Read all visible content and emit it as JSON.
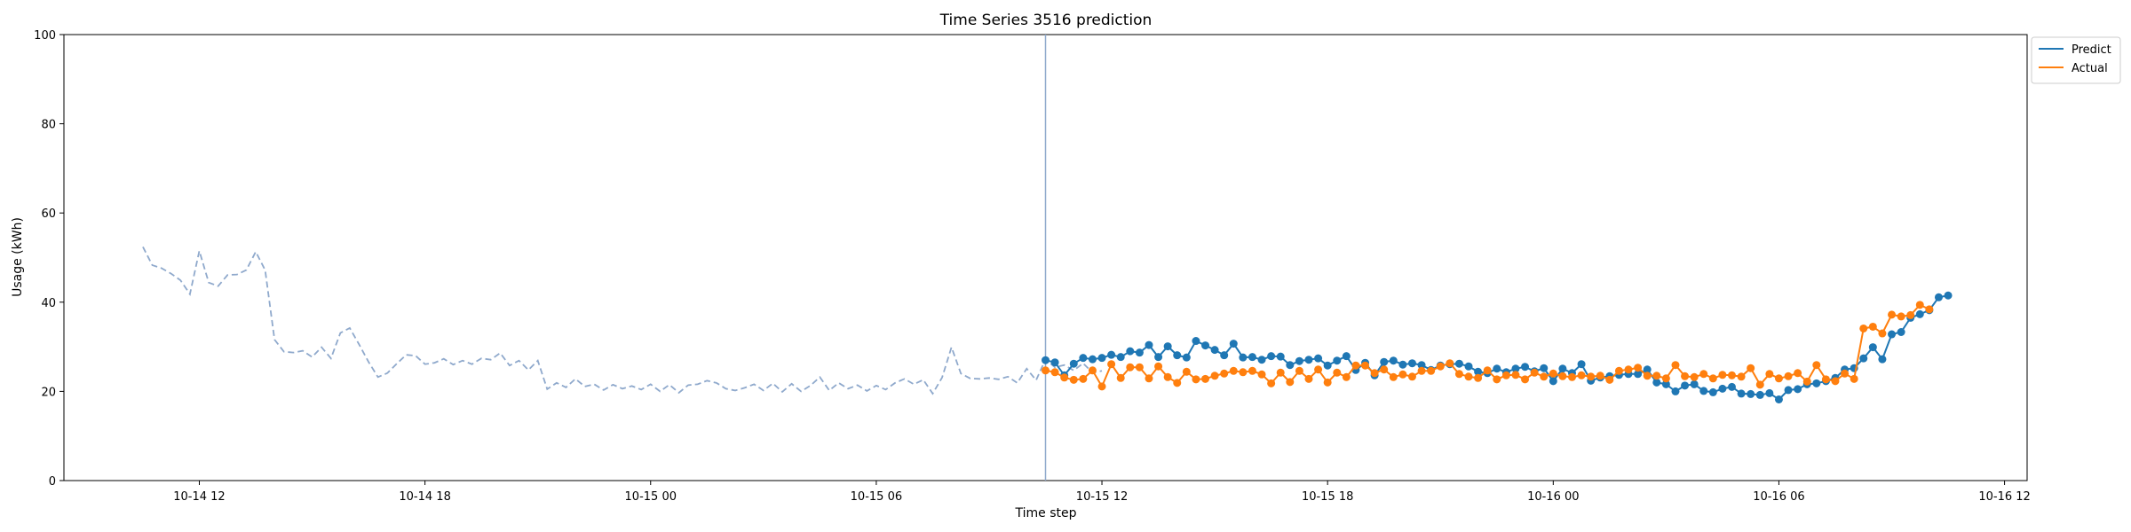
{
  "chart_data": {
    "type": "line",
    "title": "Time Series 3516 prediction",
    "xlabel": "Time step",
    "ylabel": "Usage (kWh)",
    "ylim": [
      0,
      100
    ],
    "xlim": [
      "2023-10-14 08:24",
      "2023-10-16 12:36"
    ],
    "yticks": [
      0,
      20,
      40,
      60,
      80,
      100
    ],
    "xticks": [
      "10-14 12",
      "10-14 18",
      "10-15 00",
      "10-15 06",
      "10-15 12",
      "10-15 18",
      "10-16 00",
      "10-16 06",
      "10-16 12"
    ],
    "x_start": "2023-10-14 10:30",
    "x_step_minutes": 15,
    "forecast_start": "2023-10-15 10:30",
    "grid": false,
    "legend_position": "top-right-outside",
    "history": {
      "style": "dashed",
      "color": "#8fa9cc",
      "values": [
        52.4,
        48.3,
        47.6,
        46.4,
        44.9,
        41.8,
        51.5,
        44.4,
        43.6,
        46.1,
        46.2,
        47.2,
        51.3,
        47.2,
        31.6,
        28.9,
        28.7,
        29.1,
        27.7,
        29.9,
        27.4,
        33.1,
        34.2,
        30.5,
        26.6,
        23.2,
        24.1,
        26.2,
        28.2,
        28.0,
        26.1,
        26.4,
        27.3,
        26.0,
        26.9,
        26.1,
        27.4,
        27.1,
        28.6,
        25.8,
        26.9,
        24.8,
        26.9,
        20.5,
        21.9,
        20.9,
        22.8,
        21.1,
        21.6,
        20.3,
        21.5,
        20.6,
        21.2,
        20.4,
        21.6,
        20.0,
        21.5,
        19.7,
        21.4,
        21.6,
        22.4,
        21.9,
        20.6,
        20.2,
        20.8,
        21.6,
        20.2,
        21.8,
        19.9,
        21.7,
        20.0,
        21.3,
        23.2,
        20.2,
        21.9,
        20.6,
        21.4,
        20.1,
        21.3,
        20.4,
        21.9,
        22.8,
        21.6,
        22.6,
        19.5,
        23.1,
        29.9,
        24.0,
        22.9,
        22.8,
        23.0,
        22.7,
        23.3,
        21.9,
        25.1,
        22.5,
        27.2,
        25.4,
        25.9,
        24.7,
        26.3,
        24.2,
        24.6
      ]
    },
    "series": [
      {
        "name": "Predict",
        "color": "#1f77b4",
        "values": [
          27.0,
          26.5,
          23.6,
          26.2,
          27.5,
          27.2,
          27.5,
          28.2,
          27.7,
          29.0,
          28.7,
          30.4,
          27.7,
          30.1,
          28.1,
          27.6,
          31.3,
          30.3,
          29.3,
          28.1,
          30.7,
          27.6,
          27.7,
          27.1,
          27.9,
          27.8,
          25.9,
          26.8,
          27.1,
          27.4,
          25.8,
          26.9,
          27.9,
          24.8,
          26.4,
          23.6,
          26.6,
          26.9,
          26.0,
          26.3,
          25.9,
          24.8,
          25.8,
          26.1,
          26.2,
          25.6,
          24.4,
          24.1,
          25.1,
          24.3,
          25.1,
          25.5,
          24.5,
          25.2,
          22.3,
          25.1,
          24.1,
          26.1,
          22.4,
          23.1,
          23.4,
          23.7,
          23.9,
          23.9,
          24.9,
          22.0,
          21.6,
          20.0,
          21.3,
          21.6,
          20.1,
          19.8,
          20.6,
          21.0,
          19.5,
          19.4,
          19.2,
          19.6,
          18.2,
          20.3,
          20.5,
          21.6,
          21.8,
          22.3,
          23.0,
          24.9,
          25.2,
          27.4,
          29.9,
          27.2,
          32.8,
          33.3,
          36.5,
          37.3,
          38.2,
          41.1,
          41.5
        ]
      },
      {
        "name": "Actual",
        "color": "#ff7f0e",
        "values": [
          24.7,
          24.3,
          23.1,
          22.6,
          22.8,
          24.7,
          21.1,
          26.1,
          23.0,
          25.4,
          25.4,
          22.9,
          25.6,
          23.2,
          21.9,
          24.4,
          22.7,
          22.8,
          23.5,
          24.0,
          24.6,
          24.3,
          24.6,
          23.8,
          21.8,
          24.2,
          22.1,
          24.6,
          22.8,
          24.9,
          22.0,
          24.2,
          23.2,
          25.8,
          25.8,
          24.1,
          24.9,
          23.2,
          23.8,
          23.3,
          24.6,
          24.6,
          25.6,
          26.3,
          23.9,
          23.3,
          23.0,
          24.7,
          22.7,
          23.6,
          23.7,
          22.7,
          24.2,
          23.3,
          24.0,
          23.4,
          23.2,
          23.6,
          23.3,
          23.5,
          22.6,
          24.6,
          24.9,
          25.3,
          23.5,
          23.5,
          22.9,
          25.9,
          23.4,
          23.2,
          23.9,
          22.9,
          23.7,
          23.6,
          23.3,
          25.2,
          21.5,
          23.9,
          22.9,
          23.4,
          24.1,
          22.2,
          25.9,
          22.7,
          22.3,
          24.0,
          22.8,
          34.1,
          34.5,
          33.0,
          37.2,
          36.8,
          37.1,
          39.4,
          38.4
        ]
      }
    ]
  }
}
